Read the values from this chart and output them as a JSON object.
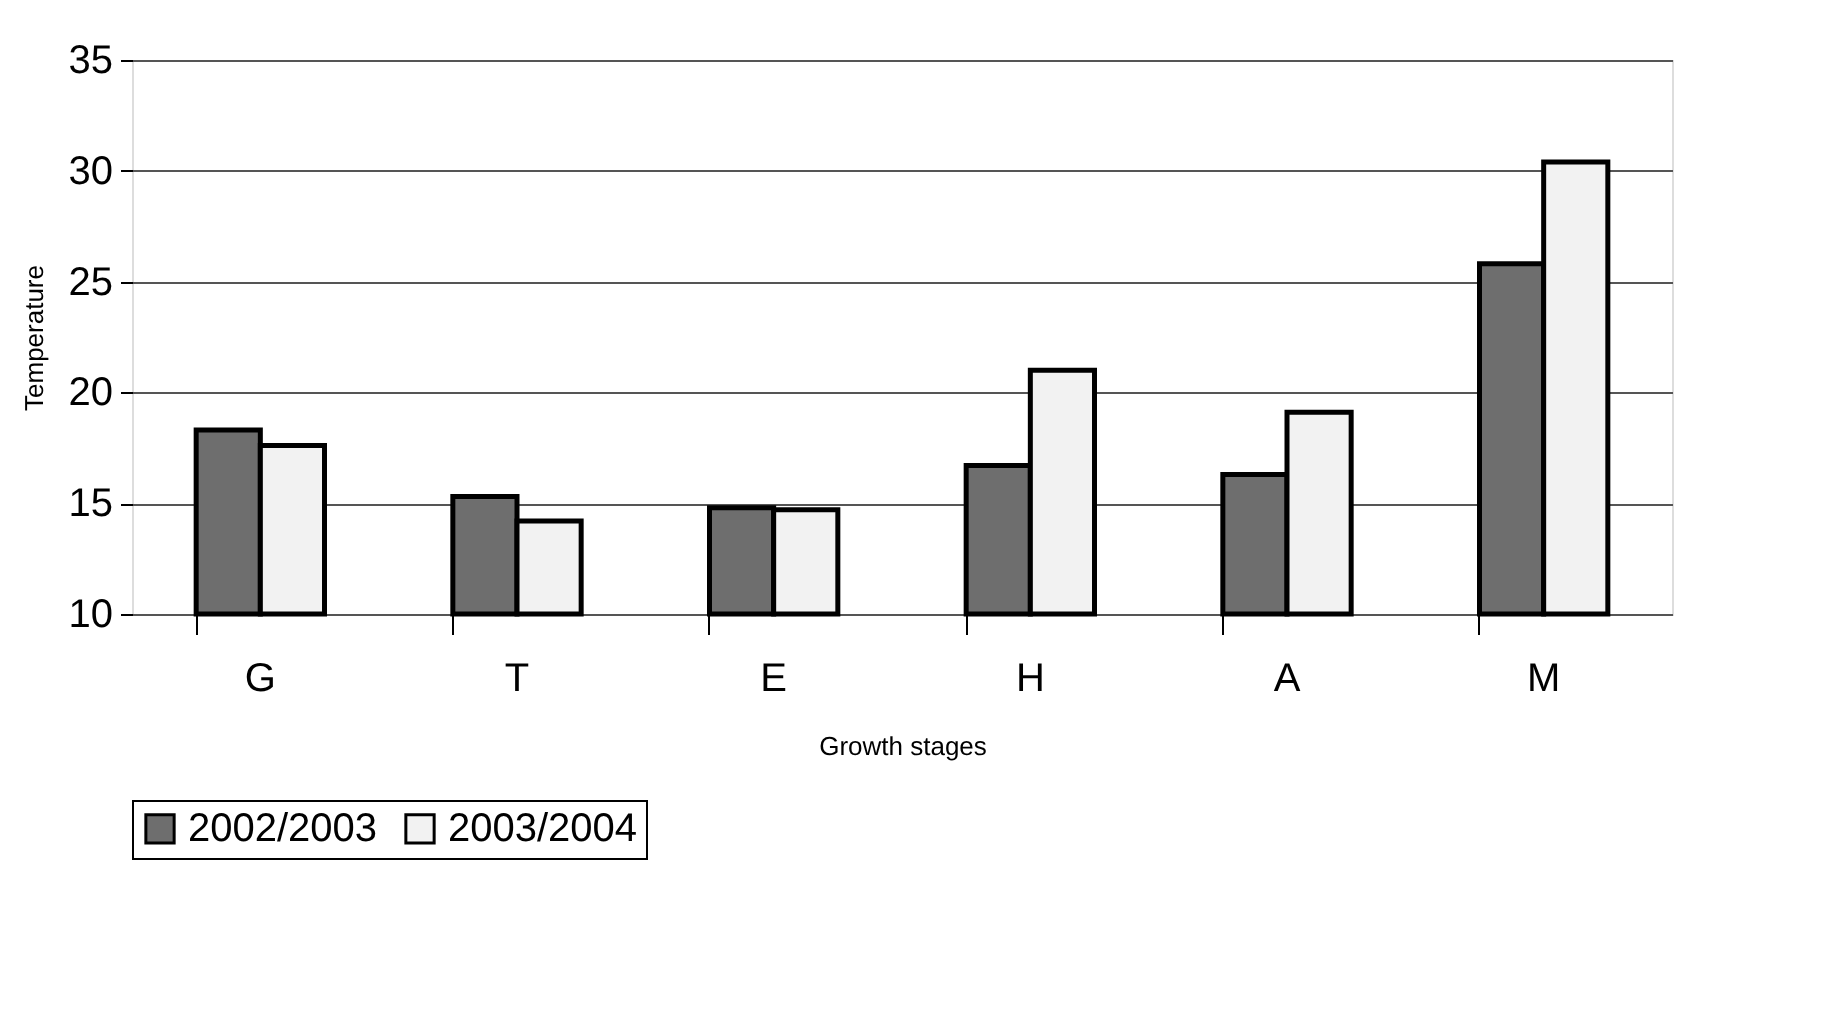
{
  "chart_data": {
    "type": "bar",
    "xlabel": "Growth stages",
    "ylabel": "Temperature",
    "categories": [
      "G",
      "T",
      "E",
      "H",
      "A",
      "M"
    ],
    "series": [
      {
        "name": "2002/2003",
        "color": "#6e6e6e",
        "values": [
          18.3,
          15.3,
          14.8,
          16.7,
          16.3,
          25.8
        ]
      },
      {
        "name": "2003/2004",
        "color": "#f2f2f2",
        "values": [
          17.6,
          14.2,
          14.7,
          21.0,
          19.1,
          30.4
        ]
      }
    ],
    "ylim": [
      10,
      35
    ],
    "yticks": [
      10,
      15,
      20,
      25,
      30,
      35
    ],
    "grid": "y",
    "legend": "bottom"
  }
}
